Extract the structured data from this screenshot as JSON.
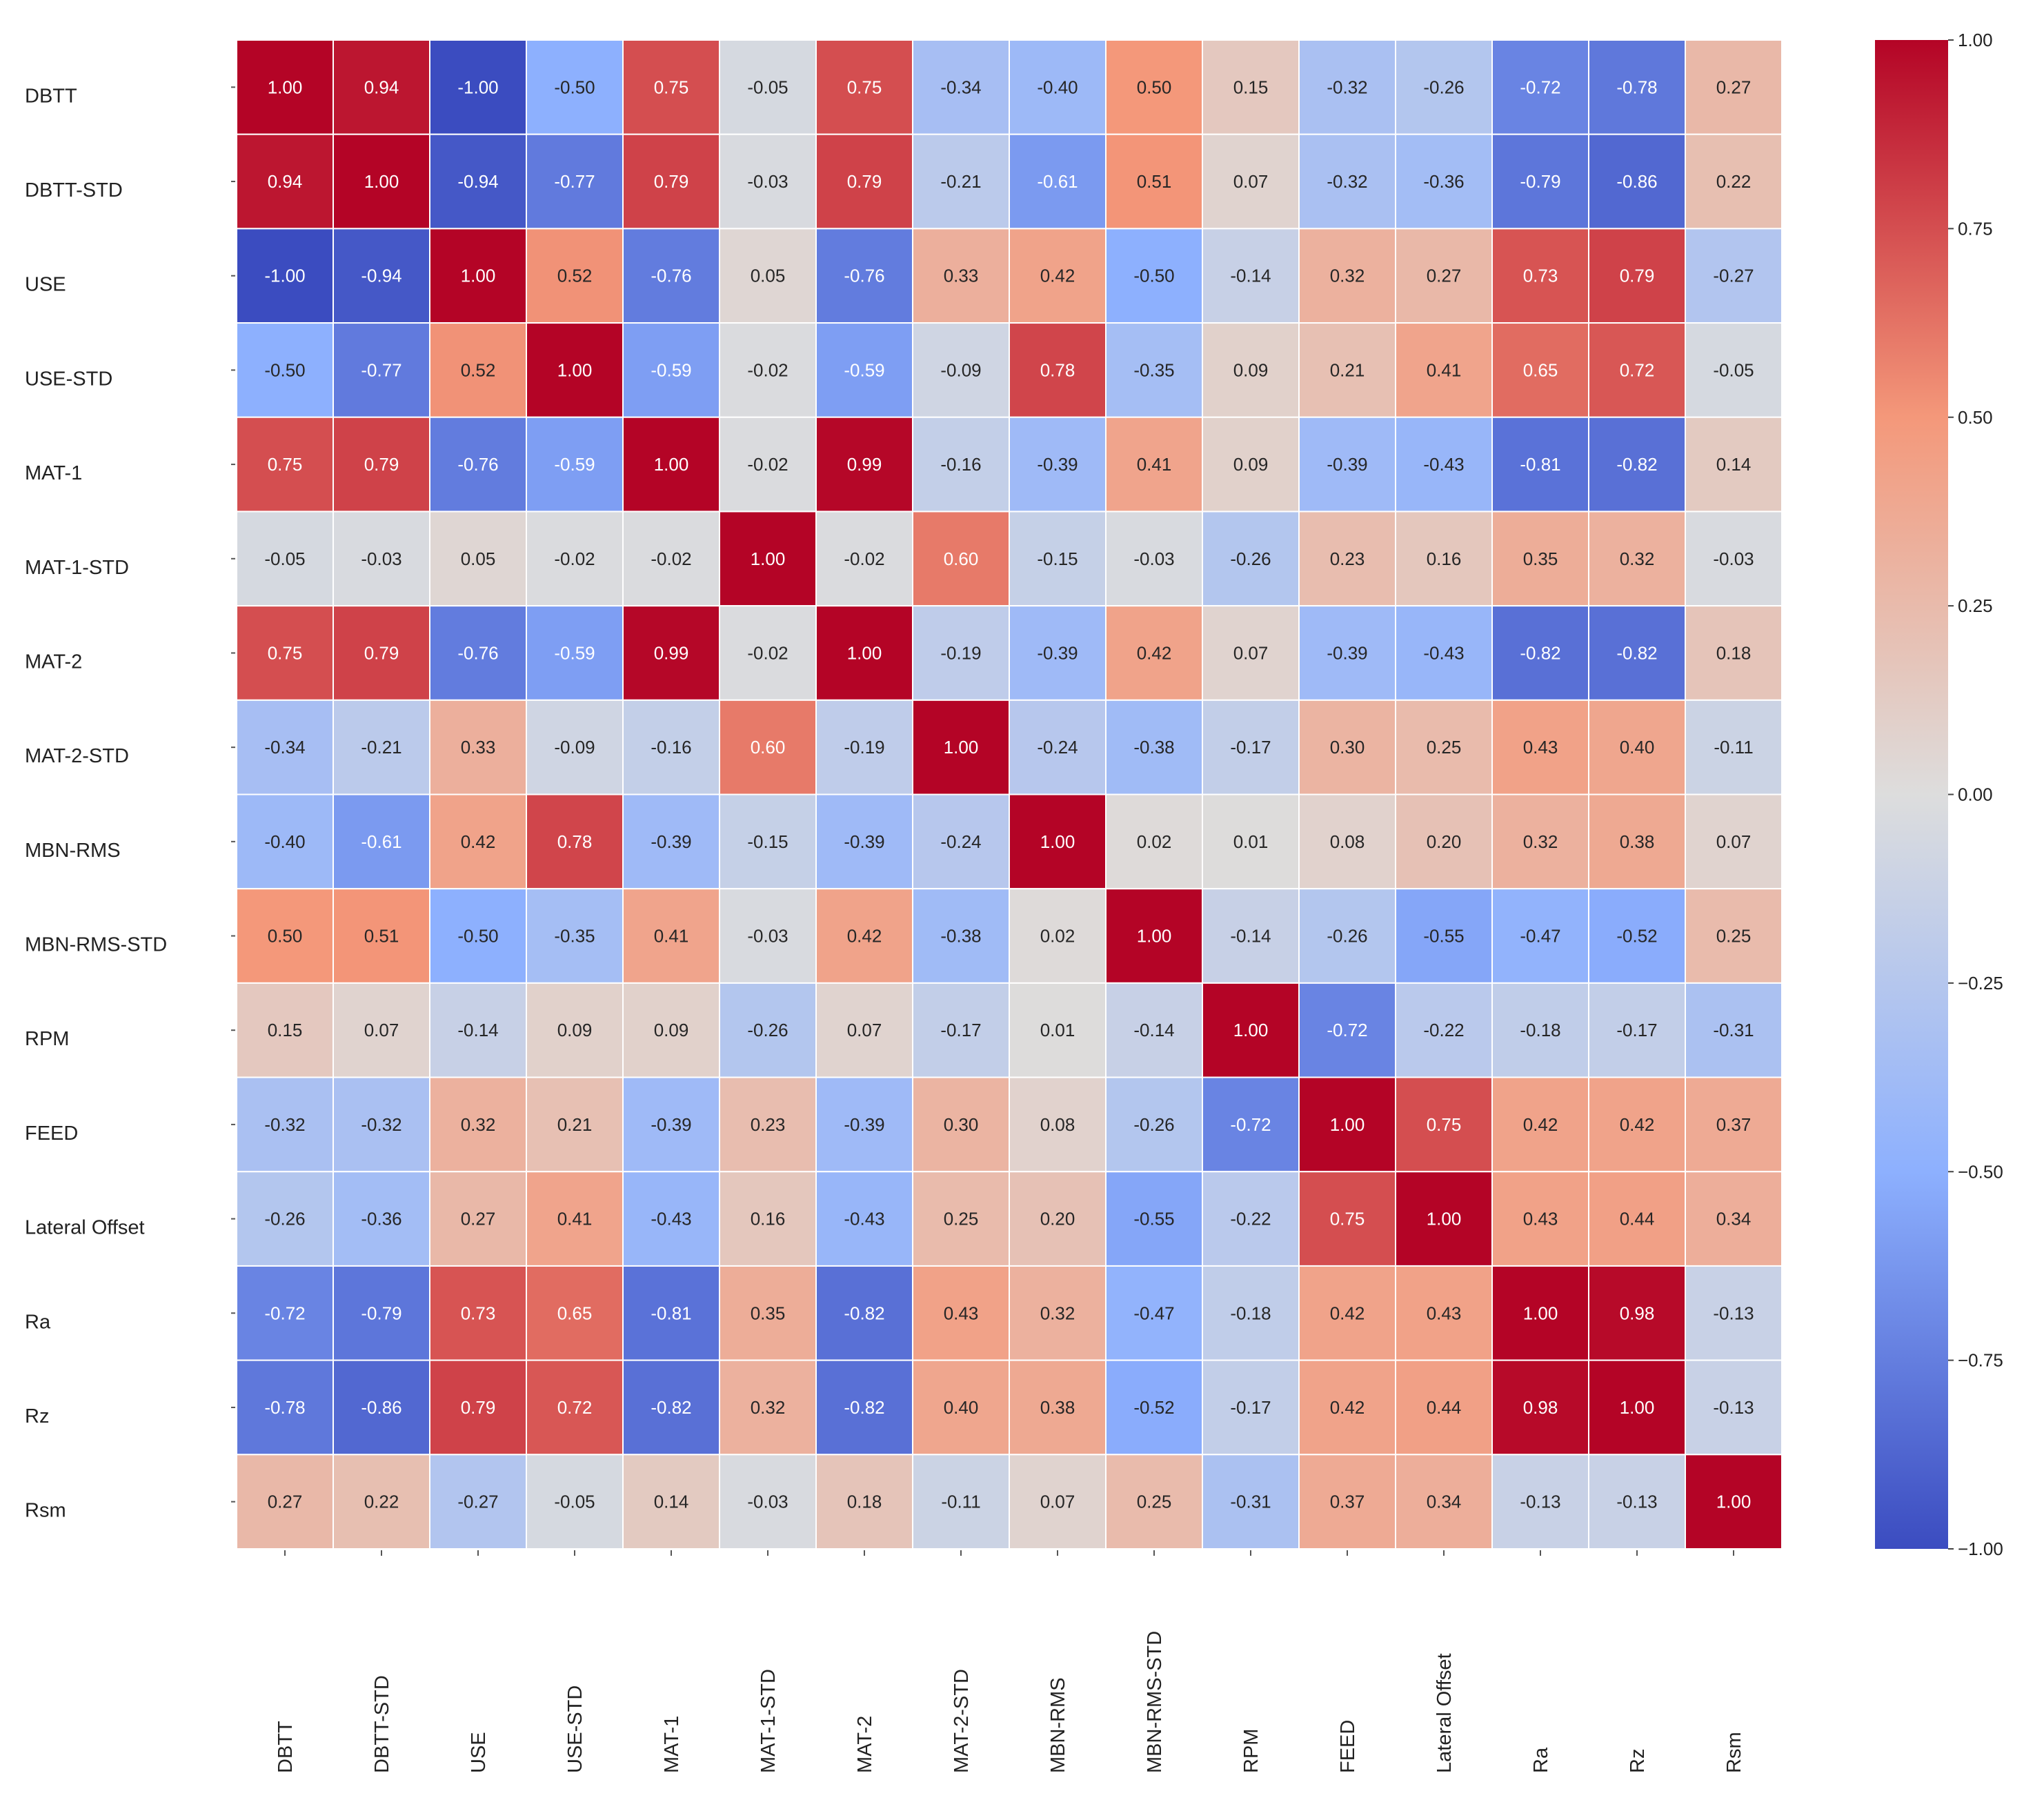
{
  "chart_data": {
    "type": "heatmap",
    "title": "",
    "xlabel": "",
    "ylabel": "",
    "colormap": "coolwarm",
    "vmin": -1.0,
    "vmax": 1.0,
    "legend": "right",
    "colors": {
      "low": "#3b4cc0",
      "mid": "#dddddd",
      "high": "#b40426"
    },
    "row_labels": [
      "DBTT",
      "DBTT-STD",
      "USE",
      "USE-STD",
      "MAT-1",
      "MAT-1-STD",
      "MAT-2",
      "MAT-2-STD",
      "MBN-RMS",
      "MBN-RMS-STD",
      "RPM",
      "FEED",
      "Lateral Offset",
      "Ra",
      "Rz",
      "Rsm"
    ],
    "col_labels": [
      "DBTT",
      "DBTT-STD",
      "USE",
      "USE-STD",
      "MAT-1",
      "MAT-1-STD",
      "MAT-2",
      "MAT-2-STD",
      "MBN-RMS",
      "MBN-RMS-STD",
      "RPM",
      "FEED",
      "Lateral Offset",
      "Ra",
      "Rz",
      "Rsm"
    ],
    "values": [
      [
        1.0,
        0.94,
        -1.0,
        -0.5,
        0.75,
        -0.05,
        0.75,
        -0.34,
        -0.4,
        0.5,
        0.15,
        -0.32,
        -0.26,
        -0.72,
        -0.78,
        0.27
      ],
      [
        0.94,
        1.0,
        -0.94,
        -0.77,
        0.79,
        -0.03,
        0.79,
        -0.21,
        -0.61,
        0.51,
        0.07,
        -0.32,
        -0.36,
        -0.79,
        -0.86,
        0.22
      ],
      [
        -1.0,
        -0.94,
        1.0,
        0.52,
        -0.76,
        0.05,
        -0.76,
        0.33,
        0.42,
        -0.5,
        -0.14,
        0.32,
        0.27,
        0.73,
        0.79,
        -0.27
      ],
      [
        -0.5,
        -0.77,
        0.52,
        1.0,
        -0.59,
        -0.02,
        -0.59,
        -0.09,
        0.78,
        -0.35,
        0.09,
        0.21,
        0.41,
        0.65,
        0.72,
        -0.05
      ],
      [
        0.75,
        0.79,
        -0.76,
        -0.59,
        1.0,
        -0.02,
        0.99,
        -0.16,
        -0.39,
        0.41,
        0.09,
        -0.39,
        -0.43,
        -0.81,
        -0.82,
        0.14
      ],
      [
        -0.05,
        -0.03,
        0.05,
        -0.02,
        -0.02,
        1.0,
        -0.02,
        0.6,
        -0.15,
        -0.03,
        -0.26,
        0.23,
        0.16,
        0.35,
        0.32,
        -0.03
      ],
      [
        0.75,
        0.79,
        -0.76,
        -0.59,
        0.99,
        -0.02,
        1.0,
        -0.19,
        -0.39,
        0.42,
        0.07,
        -0.39,
        -0.43,
        -0.82,
        -0.82,
        0.18
      ],
      [
        -0.34,
        -0.21,
        0.33,
        -0.09,
        -0.16,
        0.6,
        -0.19,
        1.0,
        -0.24,
        -0.38,
        -0.17,
        0.3,
        0.25,
        0.43,
        0.4,
        -0.11
      ],
      [
        -0.4,
        -0.61,
        0.42,
        0.78,
        -0.39,
        -0.15,
        -0.39,
        -0.24,
        1.0,
        0.02,
        0.01,
        0.08,
        0.2,
        0.32,
        0.38,
        0.07
      ],
      [
        0.5,
        0.51,
        -0.5,
        -0.35,
        0.41,
        -0.03,
        0.42,
        -0.38,
        0.02,
        1.0,
        -0.14,
        -0.26,
        -0.55,
        -0.47,
        -0.52,
        0.25
      ],
      [
        0.15,
        0.07,
        -0.14,
        0.09,
        0.09,
        -0.26,
        0.07,
        -0.17,
        0.01,
        -0.14,
        1.0,
        -0.72,
        -0.22,
        -0.18,
        -0.17,
        -0.31
      ],
      [
        -0.32,
        -0.32,
        0.32,
        0.21,
        -0.39,
        0.23,
        -0.39,
        0.3,
        0.08,
        -0.26,
        -0.72,
        1.0,
        0.75,
        0.42,
        0.42,
        0.37
      ],
      [
        -0.26,
        -0.36,
        0.27,
        0.41,
        -0.43,
        0.16,
        -0.43,
        0.25,
        0.2,
        -0.55,
        -0.22,
        0.75,
        1.0,
        0.43,
        0.44,
        0.34
      ],
      [
        -0.72,
        -0.79,
        0.73,
        0.65,
        -0.81,
        0.35,
        -0.82,
        0.43,
        0.32,
        -0.47,
        -0.18,
        0.42,
        0.43,
        1.0,
        0.98,
        -0.13
      ],
      [
        -0.78,
        -0.86,
        0.79,
        0.72,
        -0.82,
        0.32,
        -0.82,
        0.4,
        0.38,
        -0.52,
        -0.17,
        0.42,
        0.44,
        0.98,
        1.0,
        -0.13
      ],
      [
        0.27,
        0.22,
        -0.27,
        -0.05,
        0.14,
        -0.03,
        0.18,
        -0.11,
        0.07,
        0.25,
        -0.31,
        0.37,
        0.34,
        -0.13,
        -0.13,
        1.0
      ]
    ],
    "colorbar_ticks": [
      1.0,
      0.75,
      0.5,
      0.25,
      0.0,
      -0.25,
      -0.5,
      -0.75,
      -1.0
    ],
    "colorbar_tick_labels": [
      "1.00",
      "0.75",
      "0.50",
      "0.25",
      "0.00",
      "−0.25",
      "−0.50",
      "−0.75",
      "−1.00"
    ]
  }
}
